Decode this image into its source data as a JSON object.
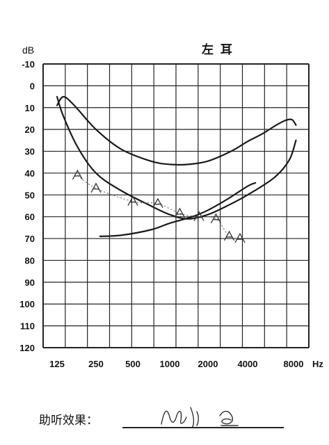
{
  "chart_data": {
    "type": "line",
    "title": "左 耳",
    "ylabel": "dB",
    "xlabel": "Hz",
    "x_ticks": [
      "125",
      "250",
      "500",
      "1000",
      "2000",
      "4000",
      "8000"
    ],
    "y_ticks": [
      "-10",
      "0",
      "10",
      "20",
      "30",
      "40",
      "50",
      "60",
      "70",
      "80",
      "90",
      "100",
      "110",
      "120"
    ],
    "ylim": [
      -10,
      120
    ],
    "y_inverted": true,
    "x_scale": "log2",
    "grid": true,
    "series": [
      {
        "kind": "upper-curve",
        "x": [
          125,
          140,
          170,
          250,
          400,
          700,
          1000,
          1400,
          2000,
          3000,
          4000,
          5000,
          6000,
          7000,
          7800,
          8300
        ],
        "y": [
          9,
          5,
          9,
          20,
          29,
          34.5,
          36,
          36,
          34.5,
          30,
          25.5,
          22,
          18.5,
          16,
          15.5,
          18
        ]
      },
      {
        "kind": "lower-curve",
        "x": [
          125,
          140,
          180,
          250,
          400,
          700,
          1000,
          1400,
          2000,
          2800,
          4000,
          6000,
          7500,
          8300
        ],
        "y": [
          5,
          14,
          28,
          40,
          48,
          55,
          59,
          61,
          59,
          55,
          50,
          42,
          34,
          25
        ]
      },
      {
        "kind": "aided-line",
        "x": [
          270,
          400,
          700,
          1000,
          1500,
          2000,
          2800,
          4000,
          4500
        ],
        "y": [
          69,
          68.5,
          66,
          63,
          60,
          57,
          52,
          46,
          44.5
        ]
      },
      {
        "kind": "aided-marks-dotted",
        "x": [
          180,
          250,
          500,
          800,
          1200,
          1700,
          2300,
          2900,
          3500
        ],
        "y": [
          41,
          47,
          53,
          54,
          58.5,
          60,
          61,
          69,
          70
        ]
      }
    ]
  },
  "footer": {
    "label": "助听效果："
  }
}
